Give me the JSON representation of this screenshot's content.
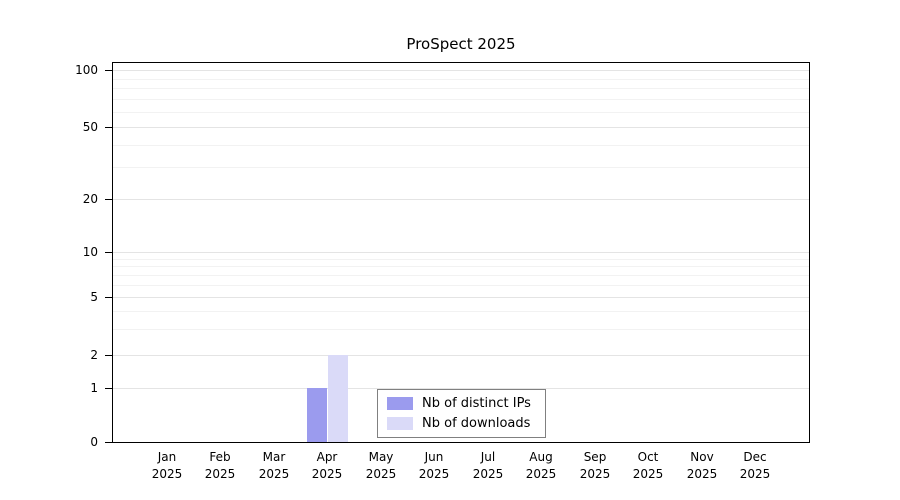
{
  "chart_data": {
    "type": "bar",
    "title": "ProSpect 2025",
    "categories": [
      "Jan 2025",
      "Feb 2025",
      "Mar 2025",
      "Apr 2025",
      "May 2025",
      "Jun 2025",
      "Jul 2025",
      "Aug 2025",
      "Sep 2025",
      "Oct 2025",
      "Nov 2025",
      "Dec 2025"
    ],
    "series": [
      {
        "name": "Nb of distinct IPs",
        "color": "#9b9bee",
        "values": [
          0,
          0,
          0,
          1,
          0,
          0,
          0,
          0,
          0,
          0,
          0,
          0
        ]
      },
      {
        "name": "Nb of downloads",
        "color": "#dadaf8",
        "values": [
          0,
          0,
          0,
          2,
          0,
          0,
          0,
          0,
          0,
          0,
          0,
          0
        ]
      }
    ],
    "xlabel": "",
    "ylabel": "",
    "y_ticks": [
      0,
      1,
      2,
      5,
      10,
      20,
      50,
      100
    ],
    "y_minor_gridlines": [
      3,
      4,
      6,
      7,
      8,
      9,
      30,
      40,
      60,
      70,
      80,
      90
    ],
    "y_scale": "log (0 pinned at baseline)",
    "ylim": [
      0,
      100
    ],
    "grid": true,
    "legend_position": "bottom-center-inside",
    "axis_color": "#000000",
    "gridline_color": "#e4e4e4",
    "background": "#ffffff"
  }
}
